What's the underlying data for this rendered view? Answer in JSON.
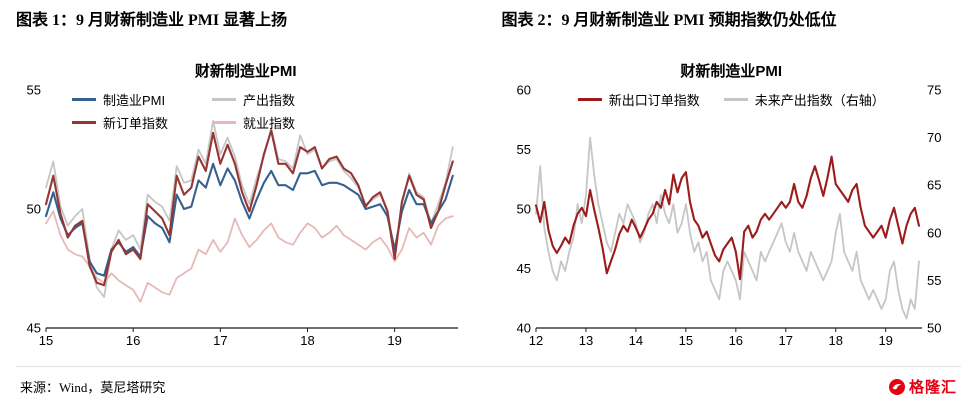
{
  "figures": {
    "fig1": {
      "heading": "图表 1：9 月财新制造业 PMI 显著上扬"
    },
    "fig2": {
      "heading": "图表 2：9 月财新制造业 PMI 预期指数仍处低位"
    }
  },
  "footer": {
    "source": "来源：Wind，莫尼塔研究",
    "brand": "格隆汇"
  },
  "colors": {
    "blue": "#366092",
    "dark_red": "#943634",
    "gray": "#c6c6c6",
    "pink": "#e6b9b8",
    "red2": "#9e1b1b",
    "brand_red": "#e60012"
  },
  "chart_data": [
    {
      "type": "line",
      "title": "财新制造业PMI",
      "x_start": 2015,
      "x_freq": "monthly",
      "xticks": [
        15,
        16,
        17,
        18,
        19
      ],
      "ylim": [
        45,
        55
      ],
      "yticks": [
        45,
        50,
        55
      ],
      "grid": false,
      "legend_position": "top",
      "legend_order": [
        2,
        0,
        3,
        1
      ],
      "series": [
        {
          "name": "产出指数",
          "color": "#c6c6c6",
          "width": 1.8,
          "axis": "left",
          "values": [
            50.9,
            52.0,
            50.1,
            49.3,
            49.7,
            50.0,
            47.9,
            46.7,
            46.3,
            48.3,
            49.1,
            48.7,
            48.9,
            48.3,
            50.6,
            50.3,
            50.1,
            49.5,
            51.8,
            51.1,
            51.2,
            52.5,
            51.9,
            53.7,
            52.3,
            53.0,
            52.2,
            51.0,
            50.2,
            51.3,
            52.2,
            53.4,
            52.1,
            52.0,
            51.7,
            53.1,
            52.3,
            52.5,
            51.7,
            52.0,
            52.1,
            51.6,
            51.3,
            50.9,
            50.2,
            50.4,
            50.6,
            50.0,
            48.1,
            50.2,
            51.5,
            50.7,
            50.5,
            49.4,
            50.2,
            51.1,
            52.6
          ]
        },
        {
          "name": "就业指数",
          "color": "#e6b9b8",
          "width": 1.8,
          "axis": "left",
          "values": [
            49.4,
            49.9,
            48.9,
            48.3,
            48.1,
            48.0,
            47.6,
            47.1,
            46.9,
            47.3,
            47.0,
            46.8,
            46.6,
            46.1,
            46.9,
            46.7,
            46.5,
            46.4,
            47.1,
            47.3,
            47.5,
            48.3,
            48.1,
            48.7,
            48.2,
            48.6,
            49.6,
            48.9,
            48.4,
            48.7,
            49.1,
            49.4,
            48.8,
            48.6,
            48.5,
            49.0,
            49.4,
            49.2,
            48.8,
            49.0,
            49.3,
            48.9,
            48.7,
            48.5,
            48.3,
            48.6,
            48.8,
            48.4,
            47.8,
            48.3,
            49.2,
            48.8,
            49.0,
            48.5,
            49.3,
            49.6,
            49.7
          ]
        },
        {
          "name": "制造业PMI",
          "color": "#366092",
          "width": 2.1,
          "axis": "left",
          "values": [
            49.7,
            50.7,
            49.6,
            48.9,
            49.2,
            49.4,
            47.8,
            47.3,
            47.2,
            48.3,
            48.6,
            48.2,
            48.4,
            48.0,
            49.7,
            49.4,
            49.2,
            48.6,
            50.6,
            50.0,
            50.1,
            51.2,
            50.9,
            51.9,
            51.0,
            51.7,
            51.2,
            50.3,
            49.6,
            50.4,
            51.1,
            51.6,
            51.0,
            51.0,
            50.8,
            51.5,
            51.5,
            51.6,
            51.0,
            51.1,
            51.1,
            51.0,
            50.8,
            50.6,
            50.0,
            50.1,
            50.2,
            49.7,
            48.3,
            49.9,
            50.8,
            50.2,
            50.2,
            49.4,
            49.9,
            50.4,
            51.4
          ]
        },
        {
          "name": "新订单指数",
          "color": "#943634",
          "width": 2.1,
          "axis": "left",
          "values": [
            50.2,
            51.4,
            49.8,
            48.8,
            49.3,
            49.5,
            47.6,
            46.9,
            46.8,
            48.2,
            48.7,
            48.1,
            48.3,
            47.9,
            50.2,
            49.9,
            49.6,
            48.9,
            51.4,
            50.6,
            50.9,
            52.2,
            51.6,
            53.2,
            51.9,
            52.7,
            51.9,
            50.7,
            49.9,
            51.0,
            52.3,
            53.3,
            51.9,
            51.9,
            51.5,
            52.6,
            52.4,
            52.6,
            51.7,
            52.1,
            52.2,
            51.7,
            51.5,
            51.0,
            50.1,
            50.5,
            50.7,
            49.9,
            47.9,
            50.3,
            51.4,
            50.6,
            50.4,
            49.2,
            49.9,
            51.0,
            52.0
          ]
        }
      ]
    },
    {
      "type": "line",
      "title": "财新制造业PMI",
      "x_start": 2012,
      "x_freq": "monthly",
      "xticks": [
        12,
        13,
        14,
        15,
        16,
        17,
        18,
        19
      ],
      "ylim": [
        40,
        60
      ],
      "yticks": [
        40,
        45,
        50,
        55,
        60
      ],
      "ylim_right": [
        50,
        75
      ],
      "yticks_right": [
        50,
        55,
        60,
        65,
        70,
        75
      ],
      "grid": false,
      "legend_position": "top",
      "legend_order": [
        1,
        0
      ],
      "series": [
        {
          "name": "未来产出指数（右轴）",
          "color": "#c6c6c6",
          "width": 1.8,
          "axis": "right",
          "values": [
            62.0,
            67.0,
            60.5,
            58.0,
            56.0,
            55.0,
            57.0,
            56.0,
            58.0,
            59.5,
            63.0,
            61.0,
            64.0,
            70.0,
            66.0,
            63.0,
            61.0,
            59.0,
            58.0,
            60.0,
            62.0,
            61.0,
            63.0,
            62.0,
            61.0,
            59.0,
            60.0,
            62.0,
            63.0,
            61.0,
            64.0,
            62.0,
            61.0,
            63.0,
            60.0,
            61.0,
            63.0,
            60.0,
            58.0,
            59.0,
            57.0,
            58.0,
            55.0,
            54.0,
            53.0,
            56.0,
            57.0,
            56.0,
            55.0,
            53.0,
            58.0,
            57.0,
            56.0,
            55.0,
            58.0,
            57.0,
            58.0,
            59.0,
            60.0,
            61.0,
            59.0,
            58.0,
            60.0,
            58.0,
            57.0,
            56.0,
            58.0,
            57.0,
            56.0,
            55.0,
            56.0,
            57.0,
            60.0,
            62.0,
            58.0,
            57.0,
            56.0,
            58.0,
            55.0,
            54.0,
            53.0,
            54.0,
            53.0,
            52.0,
            53.0,
            56.0,
            57.0,
            54.0,
            52.0,
            51.0,
            53.0,
            52.0,
            57.0
          ]
        },
        {
          "name": "新出口订单指数",
          "color": "#9e1b1b",
          "width": 2.1,
          "axis": "left",
          "values": [
            50.3,
            48.9,
            50.6,
            48.2,
            46.9,
            46.3,
            46.9,
            47.6,
            47.1,
            48.6,
            49.6,
            50.1,
            49.4,
            51.6,
            49.9,
            48.4,
            46.7,
            44.6,
            45.6,
            46.6,
            47.9,
            48.6,
            48.1,
            49.1,
            48.4,
            47.6,
            48.3,
            49.1,
            49.6,
            50.6,
            50.1,
            51.6,
            50.4,
            52.9,
            51.4,
            52.6,
            53.1,
            50.6,
            49.1,
            48.6,
            47.6,
            48.1,
            47.1,
            46.1,
            45.6,
            46.6,
            47.1,
            47.6,
            46.4,
            44.1,
            48.1,
            48.6,
            47.6,
            48.1,
            49.1,
            49.6,
            49.1,
            49.6,
            50.1,
            50.6,
            50.1,
            50.6,
            52.1,
            50.6,
            50.1,
            51.1,
            52.6,
            53.6,
            52.4,
            51.1,
            52.6,
            54.4,
            52.1,
            51.6,
            51.1,
            50.6,
            51.6,
            52.1,
            50.1,
            48.6,
            48.1,
            47.6,
            48.1,
            48.6,
            47.6,
            49.1,
            50.1,
            48.6,
            47.1,
            48.6,
            49.6,
            50.1,
            48.6
          ]
        }
      ]
    }
  ]
}
